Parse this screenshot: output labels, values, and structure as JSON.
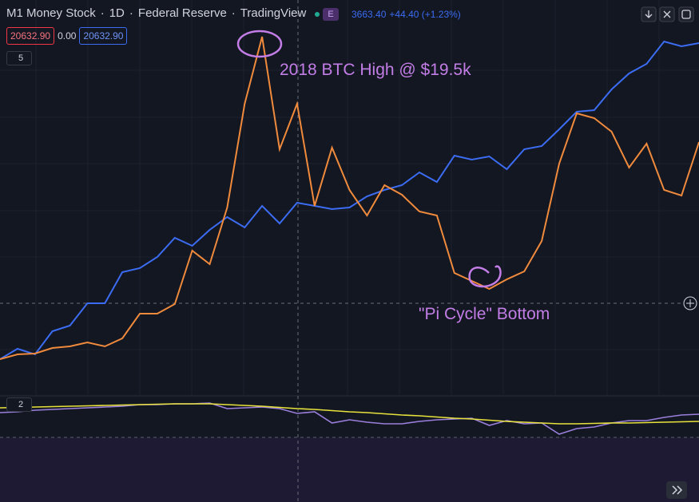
{
  "header": {
    "title": "M1 Money Stock",
    "separator": "·",
    "interval": "1D",
    "source": "Federal Reserve",
    "platform": "TradingView",
    "badge": "E",
    "price": "3663.40",
    "change": "+44.40 (+1.23%)"
  },
  "legend": {
    "values": [
      "20632.90",
      "0.00",
      "20632.90"
    ]
  },
  "panes": [
    {
      "collapse": "5"
    },
    {
      "collapse": "2"
    }
  ],
  "chart_data": [
    {
      "type": "line",
      "categories": [
        null,
        null,
        null,
        null,
        null,
        null,
        null,
        null,
        null,
        null,
        null,
        null,
        null,
        null,
        null,
        null,
        null,
        null,
        null,
        null,
        null,
        null,
        null,
        null,
        null,
        null,
        null,
        null,
        null,
        null,
        null,
        null,
        null,
        null,
        null,
        null,
        null,
        null,
        null,
        null,
        null
      ],
      "ylim": [
        0,
        100
      ],
      "annotations": [
        "2018 BTC High @ $19.5k",
        "\"Pi Cycle\" Bottom"
      ],
      "series": [
        {
          "color": "#3b6cf2",
          "values": [
            10,
            12.6,
            11.2,
            17,
            18.4,
            24,
            24,
            31.8,
            32.8,
            35.6,
            40.4,
            38.4,
            42.4,
            45.6,
            43,
            48.4,
            44,
            49.2,
            48.4,
            47.6,
            48,
            50.8,
            52.4,
            53.6,
            56.8,
            54.4,
            61,
            60,
            60.8,
            57.6,
            62.6,
            63.4,
            67.6,
            72,
            72.4,
            77.6,
            81.6,
            84,
            89.6,
            88.4,
            89.2
          ]
        },
        {
          "color": "#f08a3c",
          "values": [
            10,
            11.2,
            11.4,
            12.8,
            13.2,
            14.2,
            13.2,
            15.2,
            21.4,
            21.4,
            23.8,
            37.2,
            33.8,
            48,
            74,
            90.8,
            62.6,
            74,
            48.4,
            63,
            52.4,
            46,
            53.6,
            51.2,
            47,
            46,
            31.6,
            29.6,
            27.6,
            30,
            32,
            39.6,
            59,
            71.6,
            70.4,
            67,
            58,
            64,
            52.4,
            51,
            64.4
          ]
        }
      ]
    },
    {
      "type": "line",
      "categories": [
        null,
        null,
        null,
        null,
        null,
        null,
        null,
        null,
        null,
        null,
        null,
        null,
        null,
        null,
        null,
        null,
        null,
        null,
        null,
        null,
        null,
        null,
        null,
        null,
        null,
        null,
        null,
        null,
        null,
        null,
        null,
        null,
        null,
        null,
        null,
        null,
        null,
        null,
        null,
        null,
        null
      ],
      "ylim": [
        0,
        129
      ],
      "series": [
        {
          "color": "#9b7fdc",
          "values": [
            112,
            113,
            115,
            116,
            117,
            118,
            119,
            120,
            122,
            122,
            123,
            123,
            124,
            117,
            118,
            119,
            117,
            111,
            113,
            99,
            103,
            100,
            98,
            98,
            101,
            103,
            104,
            105,
            96,
            102,
            98,
            99,
            85,
            92,
            94,
            99,
            102,
            102,
            106,
            109,
            110
          ]
        },
        {
          "color": "#e8e23c",
          "values": [
            118,
            118.5,
            119,
            119.5,
            120,
            120.5,
            121,
            121.5,
            122,
            122.5,
            123,
            123,
            123,
            122,
            121,
            120,
            118.5,
            117,
            116,
            114.5,
            113,
            112,
            110.5,
            109,
            108,
            106.5,
            105,
            104,
            102.5,
            101,
            100,
            99,
            98,
            98,
            98.5,
            99,
            99,
            99.5,
            100,
            100.5,
            101
          ]
        }
      ]
    }
  ]
}
